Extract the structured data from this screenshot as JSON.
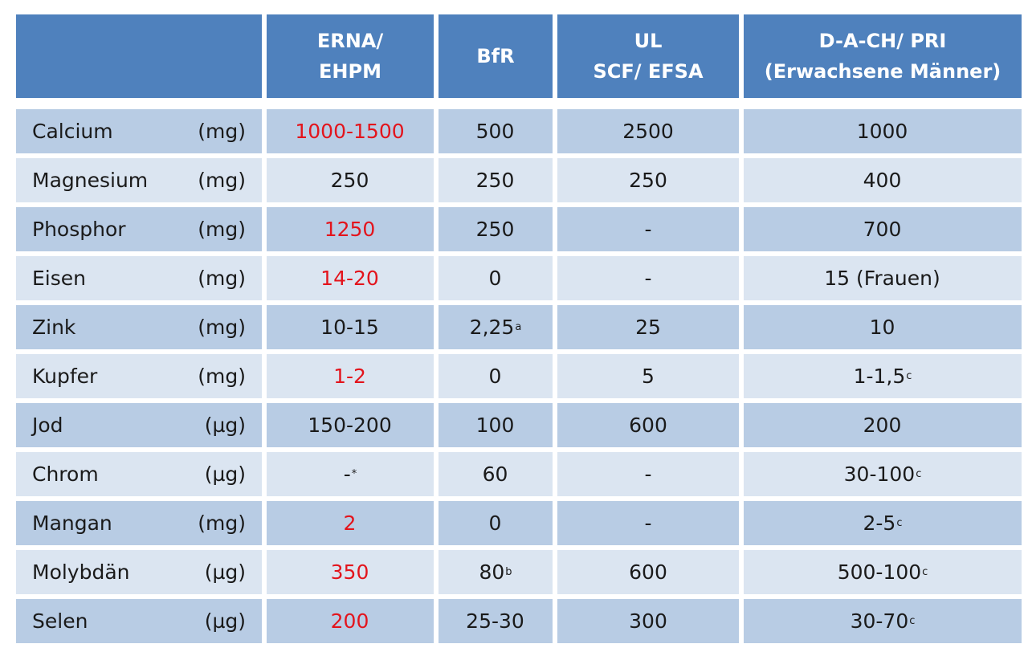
{
  "table": {
    "header": [
      {
        "line1": "",
        "line2": ""
      },
      {
        "line1": "ERNA/",
        "line2": "EHPM"
      },
      {
        "line1": "BfR",
        "line2": ""
      },
      {
        "line1": "UL",
        "line2": "SCF/ EFSA"
      },
      {
        "line1": "D-A-CH/ PRI",
        "line2": "(Erwachsene Männer)"
      }
    ],
    "rows": [
      {
        "name": "Calcium",
        "unit": "(mg)",
        "erna": "1000-1500",
        "erna_red": true,
        "erna_sup": "",
        "bfr": "500",
        "bfr_sup": "",
        "ul": "2500",
        "dach": "1000",
        "dach_sup": ""
      },
      {
        "name": "Magnesium",
        "unit": "(mg)",
        "erna": "250",
        "erna_red": false,
        "erna_sup": "",
        "bfr": "250",
        "bfr_sup": "",
        "ul": "250",
        "dach": "400",
        "dach_sup": ""
      },
      {
        "name": "Phosphor",
        "unit": "(mg)",
        "erna": "1250",
        "erna_red": true,
        "erna_sup": "",
        "bfr": "250",
        "bfr_sup": "",
        "ul": "-",
        "dach": "700",
        "dach_sup": ""
      },
      {
        "name": "Eisen",
        "unit": "(mg)",
        "erna": "14-20",
        "erna_red": true,
        "erna_sup": "",
        "bfr": "0",
        "bfr_sup": "",
        "ul": "-",
        "dach": "15 (Frauen)",
        "dach_sup": ""
      },
      {
        "name": "Zink",
        "unit": "(mg)",
        "erna": "10-15",
        "erna_red": false,
        "erna_sup": "",
        "bfr": "2,25",
        "bfr_sup": "a",
        "ul": "25",
        "dach": "10",
        "dach_sup": ""
      },
      {
        "name": "Kupfer",
        "unit": "(mg)",
        "erna": "1-2",
        "erna_red": true,
        "erna_sup": "",
        "bfr": "0",
        "bfr_sup": "",
        "ul": "5",
        "dach": "1-1,5",
        "dach_sup": "c"
      },
      {
        "name": "Jod",
        "unit": "(µg)",
        "erna": "150-200",
        "erna_red": false,
        "erna_sup": "",
        "bfr": "100",
        "bfr_sup": "",
        "ul": "600",
        "dach": "200",
        "dach_sup": ""
      },
      {
        "name": "Chrom",
        "unit": "(µg)",
        "erna": "-",
        "erna_red": false,
        "erna_sup": "*",
        "bfr": "60",
        "bfr_sup": "",
        "ul": "-",
        "dach": "30-100",
        "dach_sup": "c"
      },
      {
        "name": "Mangan",
        "unit": "(mg)",
        "erna": "2",
        "erna_red": true,
        "erna_sup": "",
        "bfr": "0",
        "bfr_sup": "",
        "ul": "-",
        "dach": "2-5",
        "dach_sup": "c"
      },
      {
        "name": "Molybdän",
        "unit": "(µg)",
        "erna": "350",
        "erna_red": true,
        "erna_sup": "",
        "bfr": "80",
        "bfr_sup": "b",
        "ul": "600",
        "dach": "500-100",
        "dach_sup": "c"
      },
      {
        "name": "Selen",
        "unit": "(µg)",
        "erna": "200",
        "erna_red": true,
        "erna_sup": "",
        "bfr": "25-30",
        "bfr_sup": "",
        "ul": "300",
        "dach": "30-70",
        "dach_sup": "c"
      }
    ]
  },
  "colors": {
    "header_bg": "#4f81bd",
    "row_dark": "#b8cce4",
    "row_light": "#dbe5f1",
    "highlight_red": "#e3141c"
  }
}
